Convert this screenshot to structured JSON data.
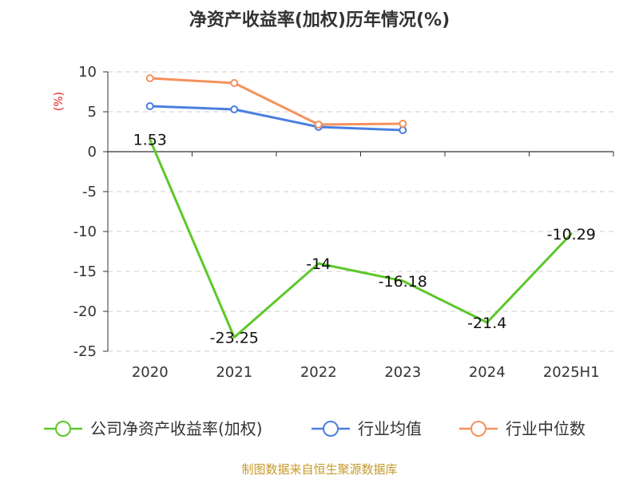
{
  "chart_data": {
    "type": "line",
    "title": "净资产收益率(加权)历年情况(%)",
    "ylabel": "(%)",
    "xlabel": "",
    "categories": [
      "2020",
      "2021",
      "2022",
      "2023",
      "2024",
      "2025H1"
    ],
    "yticks": [
      10,
      5,
      0,
      -5,
      -10,
      -15,
      -20,
      -25
    ],
    "ylim": [
      -25,
      10
    ],
    "grid": "horizontal-dashed",
    "legend_position": "bottom",
    "series": [
      {
        "name": "公司净资产收益率(加权)",
        "color": "#5cc82a",
        "values": [
          1.53,
          -23.25,
          -14,
          -16.18,
          -21.4,
          -10.29
        ],
        "labels": [
          "1.53",
          "-23.25",
          "-14",
          "-16.18",
          "-21.4",
          "-10.29"
        ]
      },
      {
        "name": "行业均值",
        "color": "#4a7fe0",
        "values": [
          5.7,
          5.3,
          3.1,
          2.7,
          null,
          null
        ]
      },
      {
        "name": "行业中位数",
        "color": "#f5915c",
        "values": [
          9.2,
          8.6,
          3.4,
          3.5,
          null,
          null
        ]
      }
    ]
  },
  "source_text": "制图数据来自恒生聚源数据库"
}
